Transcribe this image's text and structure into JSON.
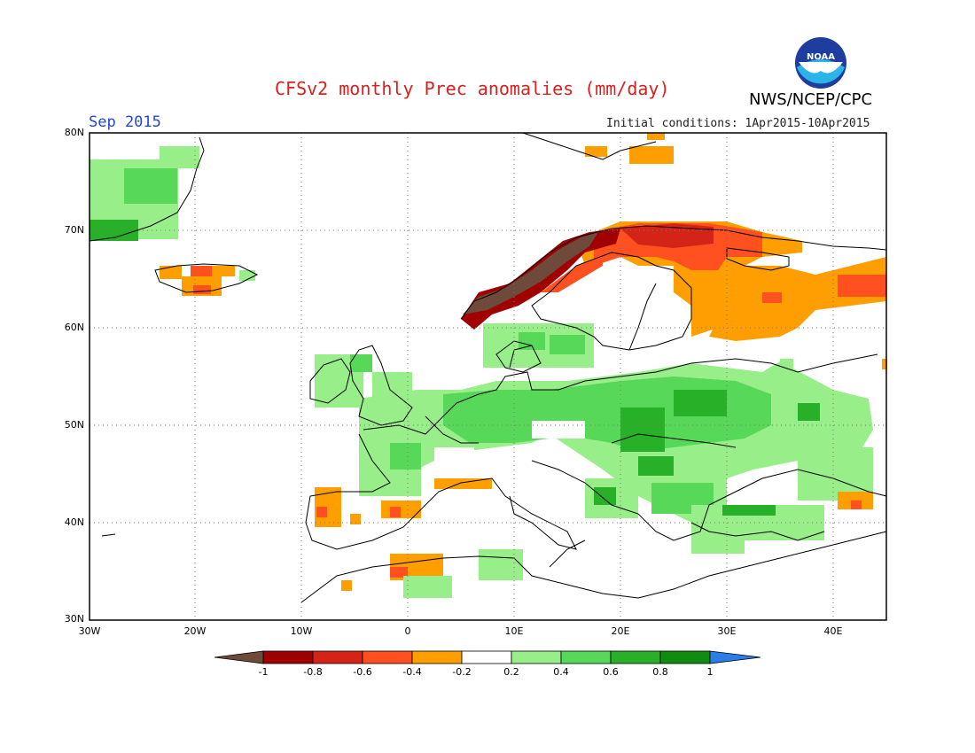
{
  "header": {
    "title": "CFSv2 monthly Prec anomalies (mm/day)",
    "agency": "NWS/NCEP/CPC",
    "logo_text": "NOAA",
    "period": "Sep 2015",
    "initial_conditions": "Initial conditions: 1Apr2015-10Apr2015"
  },
  "map": {
    "region": "Europe",
    "lat_labels": [
      "80N",
      "70N",
      "60N",
      "50N",
      "40N",
      "30N"
    ],
    "lon_labels": [
      "30W",
      "20W",
      "10W",
      "0",
      "10E",
      "20E",
      "30E",
      "40E"
    ],
    "grid_lines": "dotted",
    "anomaly_pattern": [
      {
        "area": "Norway / northern Scandinavia coast",
        "category": "<-1"
      },
      {
        "area": "Northern Finland / Kola",
        "category": "-0.6 to -0.4"
      },
      {
        "area": "Western Russia near 60-65N",
        "category": "-0.4 to -0.2"
      },
      {
        "area": "Central and Eastern Europe",
        "category": "0.2 to 0.8"
      },
      {
        "area": "France / Benelux / Germany",
        "category": "0.2 to 0.6"
      },
      {
        "area": "Greenland east coast",
        "category": "0.2 to 0.8"
      },
      {
        "area": "Iberia west coast",
        "category": "-0.4 to -0.2"
      }
    ]
  },
  "colorbar": {
    "labels": [
      "-1",
      "-0.8",
      "-0.6",
      "-0.4",
      "-0.2",
      "0.2",
      "0.4",
      "0.6",
      "0.8",
      "1"
    ],
    "colors": [
      "#6e4a3a",
      "#a00000",
      "#d42418",
      "#ff5020",
      "#ff9e00",
      "#ffffff",
      "#98ee88",
      "#58d858",
      "#28b028",
      "#108c10",
      "#2a7ee8"
    ]
  }
}
